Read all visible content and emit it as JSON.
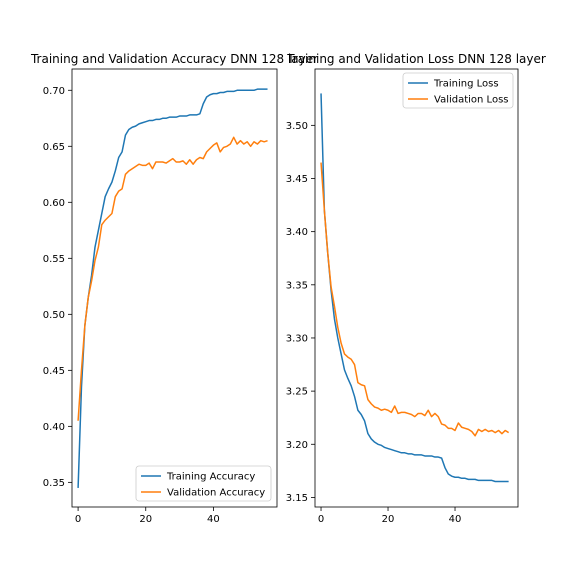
{
  "colors": {
    "series1": "#1f77b4",
    "series2": "#ff7f0e"
  },
  "chart_data": [
    {
      "type": "line",
      "title": "Training and Validation Accuracy DNN 128 layer",
      "xlabel": "",
      "ylabel": "",
      "xlim": [
        -1.8,
        58.8
      ],
      "ylim": [
        0.328,
        0.719
      ],
      "xticks": [
        0,
        20,
        40
      ],
      "yticks": [
        0.35,
        0.4,
        0.45,
        0.5,
        0.55,
        0.6,
        0.65,
        0.7
      ],
      "ytick_labels": [
        "0.35",
        "0.40",
        "0.45",
        "0.50",
        "0.55",
        "0.60",
        "0.65",
        "0.70"
      ],
      "legend_position": "lower right",
      "x": [
        0,
        1,
        2,
        3,
        4,
        5,
        6,
        7,
        8,
        9,
        10,
        11,
        12,
        13,
        14,
        15,
        16,
        17,
        18,
        19,
        20,
        21,
        22,
        23,
        24,
        25,
        26,
        27,
        28,
        29,
        30,
        31,
        32,
        33,
        34,
        35,
        36,
        37,
        38,
        39,
        40,
        41,
        42,
        43,
        44,
        45,
        46,
        47,
        48,
        49,
        50,
        51,
        52,
        53,
        54,
        55,
        56
      ],
      "series": [
        {
          "name": "Training Accuracy",
          "values": [
            0.345,
            0.435,
            0.49,
            0.515,
            0.535,
            0.56,
            0.575,
            0.59,
            0.605,
            0.612,
            0.618,
            0.628,
            0.64,
            0.645,
            0.66,
            0.665,
            0.667,
            0.668,
            0.67,
            0.671,
            0.672,
            0.673,
            0.673,
            0.674,
            0.674,
            0.675,
            0.675,
            0.676,
            0.676,
            0.676,
            0.677,
            0.677,
            0.677,
            0.678,
            0.678,
            0.678,
            0.679,
            0.688,
            0.694,
            0.696,
            0.697,
            0.697,
            0.698,
            0.698,
            0.699,
            0.699,
            0.699,
            0.7,
            0.7,
            0.7,
            0.7,
            0.7,
            0.7,
            0.701,
            0.701,
            0.701,
            0.701
          ]
        },
        {
          "name": "Validation Accuracy",
          "values": [
            0.405,
            0.45,
            0.49,
            0.515,
            0.53,
            0.548,
            0.56,
            0.58,
            0.584,
            0.587,
            0.59,
            0.605,
            0.61,
            0.612,
            0.625,
            0.628,
            0.63,
            0.632,
            0.634,
            0.633,
            0.633,
            0.635,
            0.63,
            0.636,
            0.636,
            0.636,
            0.635,
            0.637,
            0.639,
            0.636,
            0.636,
            0.637,
            0.634,
            0.638,
            0.634,
            0.638,
            0.64,
            0.639,
            0.645,
            0.648,
            0.651,
            0.653,
            0.645,
            0.649,
            0.65,
            0.652,
            0.658,
            0.652,
            0.655,
            0.652,
            0.654,
            0.65,
            0.654,
            0.652,
            0.655,
            0.654,
            0.655
          ]
        }
      ]
    },
    {
      "type": "line",
      "title": "Training and Validation Loss DNN 128 layer",
      "xlabel": "",
      "ylabel": "",
      "xlim": [
        -1.8,
        58.8
      ],
      "ylim": [
        3.141,
        3.553
      ],
      "xticks": [
        0,
        20,
        40
      ],
      "yticks": [
        3.15,
        3.2,
        3.25,
        3.3,
        3.35,
        3.4,
        3.45,
        3.5
      ],
      "ytick_labels": [
        "3.15",
        "3.20",
        "3.25",
        "3.30",
        "3.35",
        "3.40",
        "3.45",
        "3.50"
      ],
      "legend_position": "upper right",
      "x": [
        0,
        1,
        2,
        3,
        4,
        5,
        6,
        7,
        8,
        9,
        10,
        11,
        12,
        13,
        14,
        15,
        16,
        17,
        18,
        19,
        20,
        21,
        22,
        23,
        24,
        25,
        26,
        27,
        28,
        29,
        30,
        31,
        32,
        33,
        34,
        35,
        36,
        37,
        38,
        39,
        40,
        41,
        42,
        43,
        44,
        45,
        46,
        47,
        48,
        49,
        50,
        51,
        52,
        53,
        54,
        55,
        56
      ],
      "series": [
        {
          "name": "Training Loss",
          "values": [
            3.53,
            3.42,
            3.38,
            3.345,
            3.318,
            3.3,
            3.285,
            3.27,
            3.262,
            3.255,
            3.245,
            3.232,
            3.228,
            3.222,
            3.21,
            3.205,
            3.202,
            3.2,
            3.199,
            3.197,
            3.196,
            3.195,
            3.194,
            3.193,
            3.192,
            3.192,
            3.191,
            3.191,
            3.19,
            3.19,
            3.19,
            3.189,
            3.189,
            3.189,
            3.188,
            3.188,
            3.187,
            3.178,
            3.172,
            3.17,
            3.169,
            3.169,
            3.168,
            3.168,
            3.167,
            3.167,
            3.167,
            3.166,
            3.166,
            3.166,
            3.166,
            3.166,
            3.165,
            3.165,
            3.165,
            3.165,
            3.165
          ]
        },
        {
          "name": "Validation Loss",
          "values": [
            3.465,
            3.42,
            3.38,
            3.348,
            3.33,
            3.31,
            3.295,
            3.285,
            3.282,
            3.28,
            3.275,
            3.258,
            3.256,
            3.255,
            3.242,
            3.238,
            3.235,
            3.234,
            3.232,
            3.233,
            3.232,
            3.23,
            3.236,
            3.229,
            3.23,
            3.23,
            3.229,
            3.228,
            3.226,
            3.229,
            3.229,
            3.227,
            3.232,
            3.226,
            3.229,
            3.226,
            3.219,
            3.218,
            3.215,
            3.215,
            3.213,
            3.22,
            3.216,
            3.215,
            3.214,
            3.212,
            3.208,
            3.214,
            3.212,
            3.214,
            3.212,
            3.213,
            3.211,
            3.213,
            3.21,
            3.213,
            3.211
          ]
        }
      ]
    }
  ]
}
